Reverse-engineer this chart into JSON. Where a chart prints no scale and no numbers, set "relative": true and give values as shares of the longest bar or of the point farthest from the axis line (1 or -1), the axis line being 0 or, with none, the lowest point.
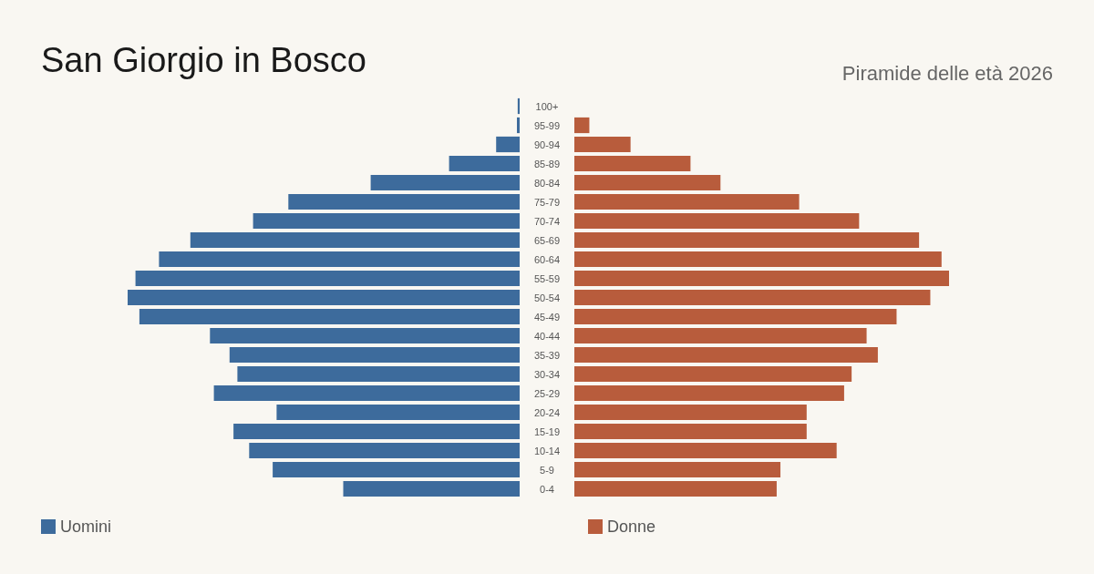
{
  "chart_data": [
    {
      "type": "bar",
      "orientation": "horizontal",
      "relative": true,
      "title": "San Giorgio in Bosco",
      "legend": "bottom left",
      "categories": [
        "100+",
        "95-99",
        "90-94",
        "85-89",
        "80-84",
        "75-79",
        "70-74",
        "65-69",
        "60-64",
        "55-59",
        "50-54",
        "45-49",
        "40-44",
        "35-39",
        "30-34",
        "25-29",
        "20-24",
        "15-19",
        "10-14",
        "5-9",
        "0-4"
      ],
      "series": [
        {
          "name": "Uomini",
          "color": "#3d6b9c",
          "values": [
            -0.005,
            -0.007,
            -0.06,
            -0.18,
            -0.38,
            -0.59,
            -0.68,
            -0.84,
            -0.92,
            -0.98,
            -1,
            -0.97,
            -0.79,
            -0.74,
            -0.72,
            -0.78,
            -0.62,
            -0.73,
            -0.69,
            -0.63,
            -0.45
          ]
        }
      ]
    },
    {
      "type": "bar",
      "orientation": "horizontal",
      "relative": true,
      "subtitle": "Piramide delle età 2026",
      "legend": "bottom left",
      "categories": [
        null,
        null,
        null,
        null,
        null,
        null,
        null,
        null,
        null,
        null,
        null,
        null,
        null,
        null,
        null,
        null,
        null,
        null,
        null,
        null,
        null
      ],
      "series": [
        {
          "name": "Donne",
          "color": "#b85c3c",
          "values": [
            0,
            0.04,
            0.15,
            0.31,
            0.39,
            0.6,
            0.76,
            0.92,
            0.98,
            1,
            0.95,
            0.86,
            0.78,
            0.81,
            0.74,
            0.72,
            0.62,
            0.62,
            0.7,
            0.55,
            0.54
          ]
        }
      ]
    }
  ]
}
